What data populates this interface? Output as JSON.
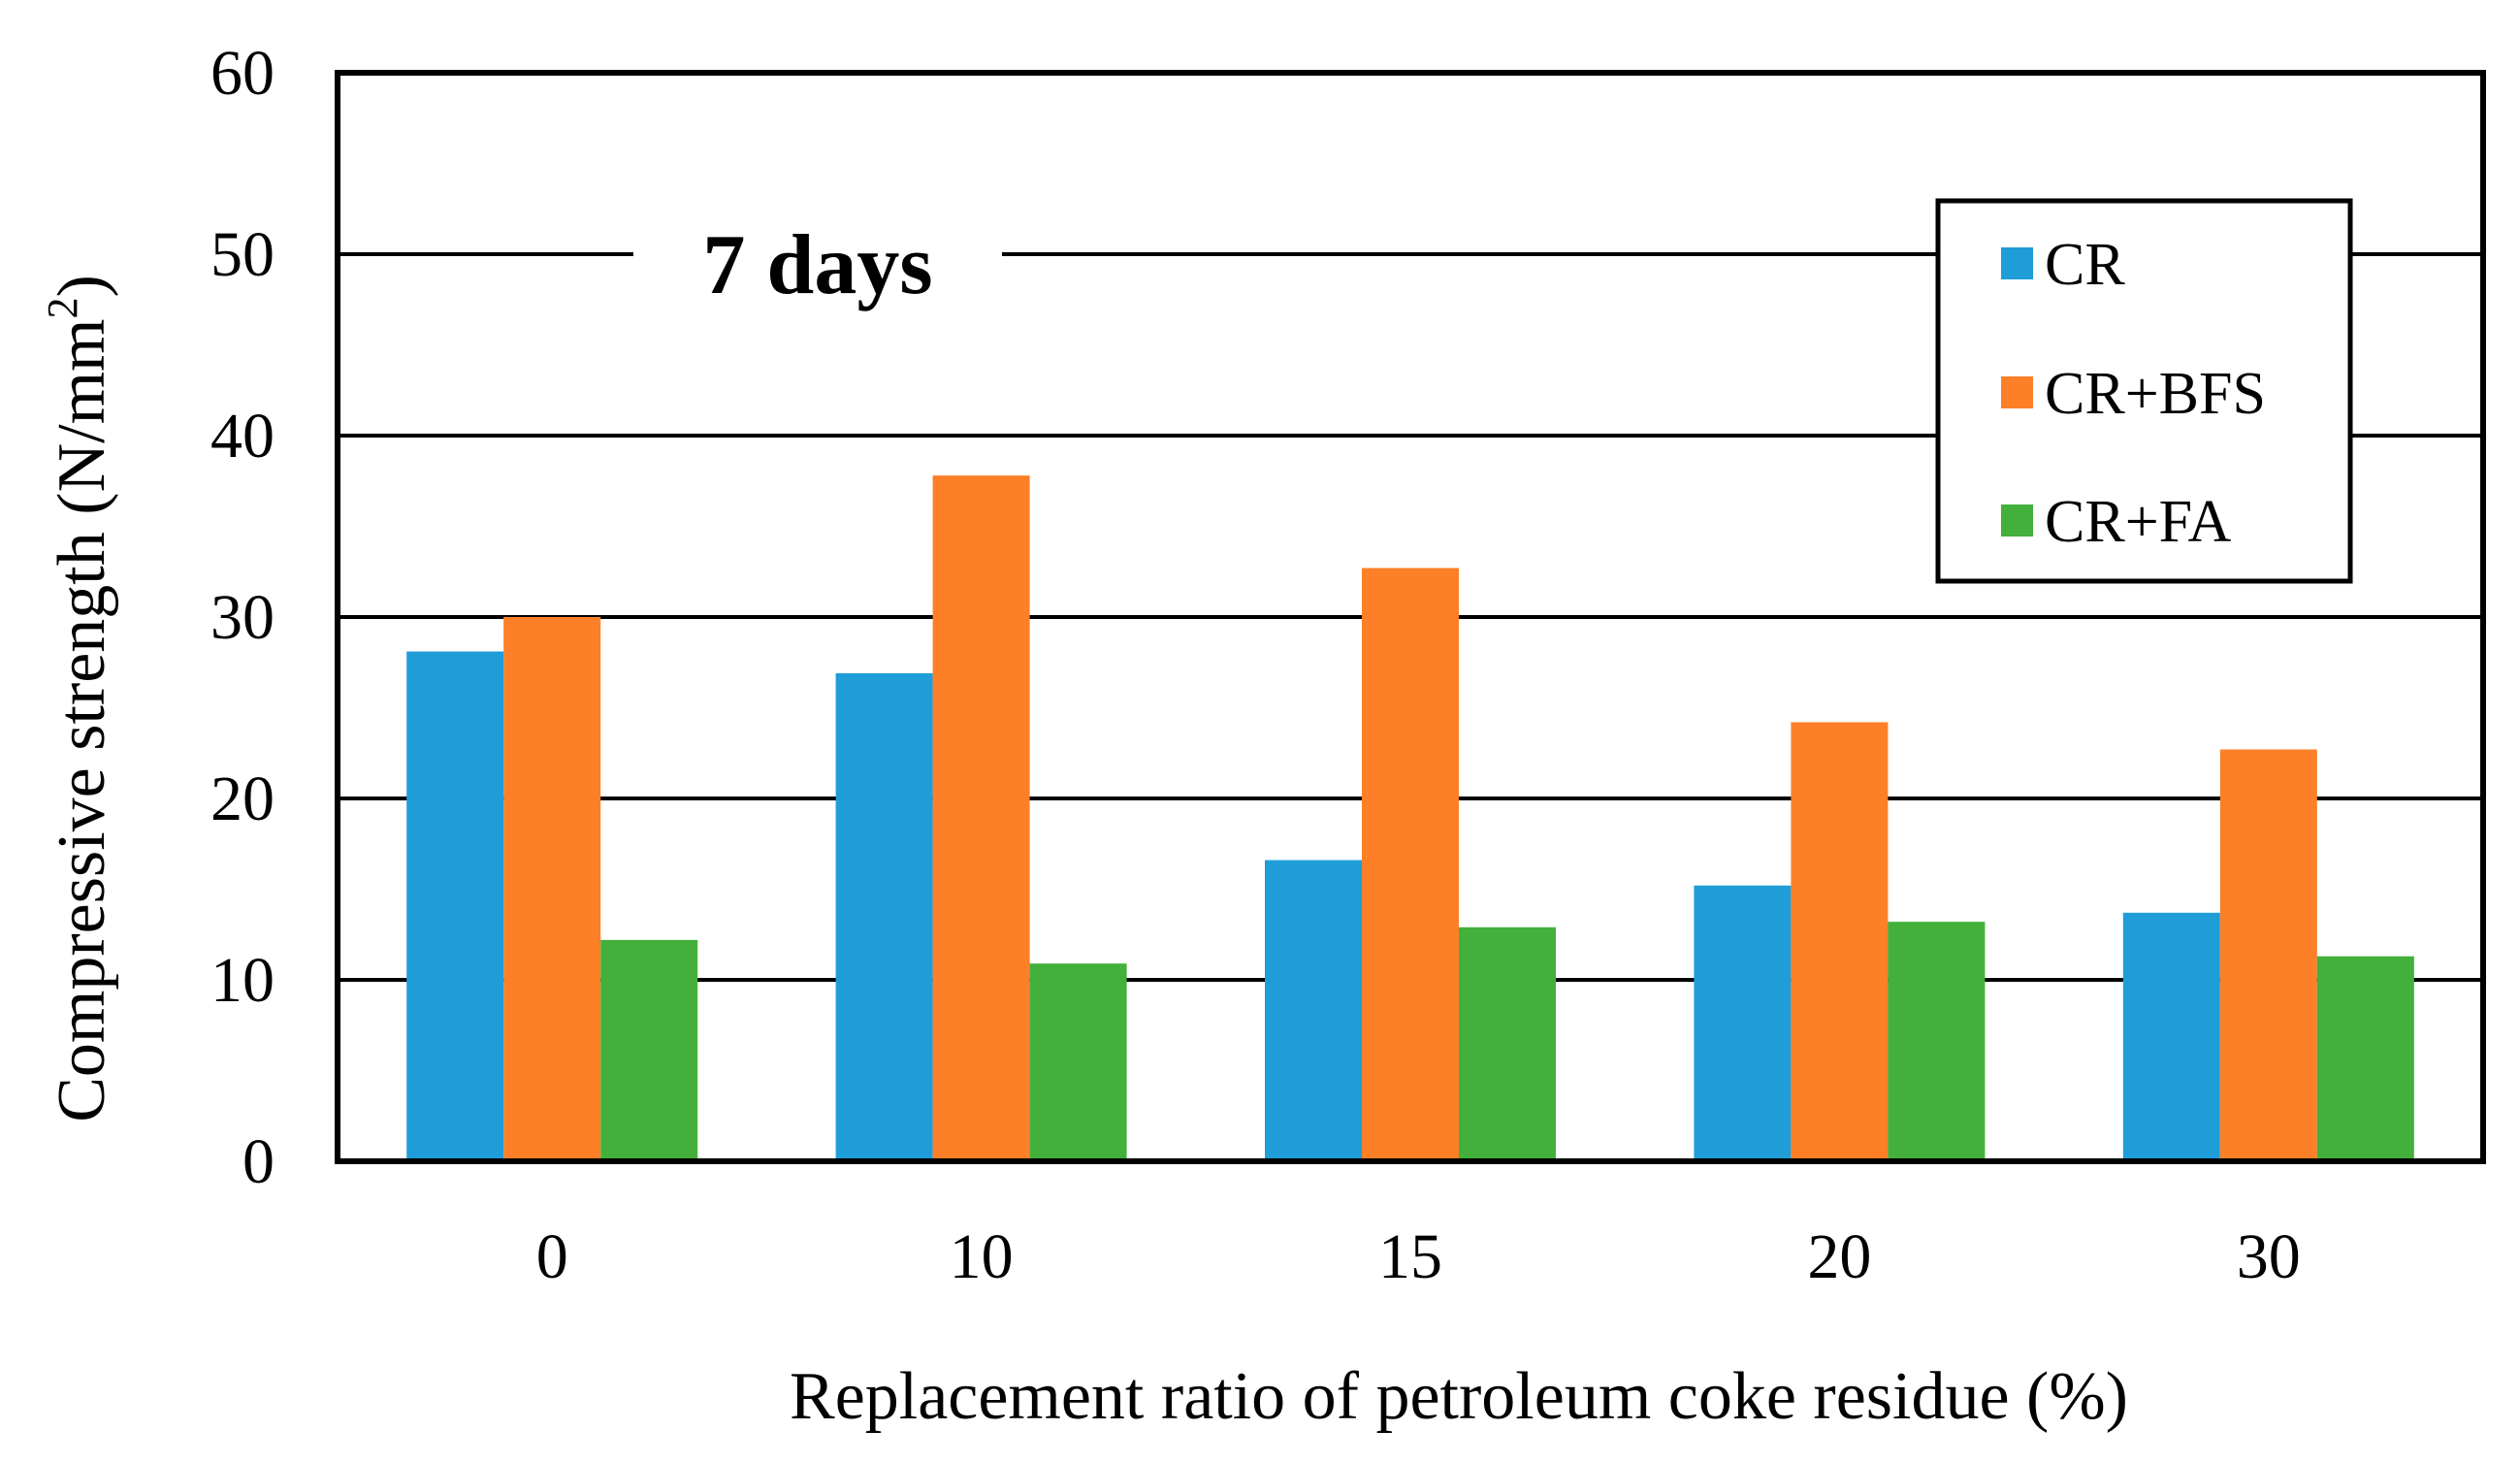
{
  "chart_data": {
    "type": "bar",
    "categories": [
      "0",
      "10",
      "15",
      "20",
      "30"
    ],
    "series": [
      {
        "name": "CR",
        "color": "#1f9dd9",
        "values": [
          28.1,
          26.9,
          16.6,
          15.2,
          13.7
        ]
      },
      {
        "name": "CR+BFS",
        "color": "#fd7f28",
        "values": [
          30.0,
          37.8,
          32.7,
          24.2,
          22.7
        ]
      },
      {
        "name": "CR+FA",
        "color": "#43b03c",
        "values": [
          12.2,
          10.9,
          12.9,
          13.2,
          11.3
        ]
      }
    ],
    "title": "",
    "annotation": "7 days",
    "xlabel": "Replacement ratio of petroleum coke residue (%)",
    "ylabel": "Compressive strength (N/mm",
    "ylabel_superscript": "2",
    "ylabel_suffix": ")",
    "ylim": [
      0,
      60
    ],
    "yticks": [
      0,
      10,
      20,
      30,
      40,
      50,
      60
    ],
    "grid": true,
    "legend_position": "top-right"
  }
}
